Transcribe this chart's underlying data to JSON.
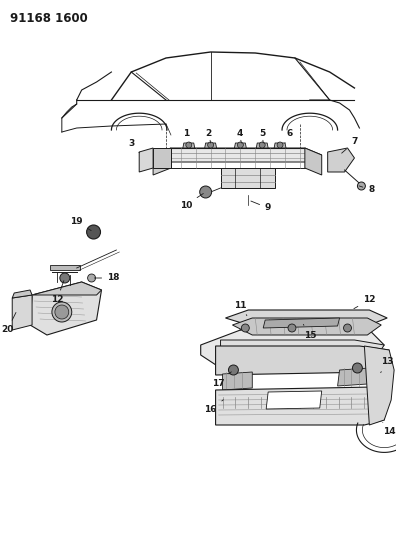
{
  "title_code": "91168 1600",
  "bg_color": "#ffffff",
  "line_color": "#1a1a1a",
  "gray_color": "#888888",
  "dark_gray": "#555555",
  "light_gray": "#cccccc",
  "fig_width": 3.97,
  "fig_height": 5.33,
  "dpi": 100,
  "label_fontsize": 6.5,
  "title_fontsize": 8.5
}
